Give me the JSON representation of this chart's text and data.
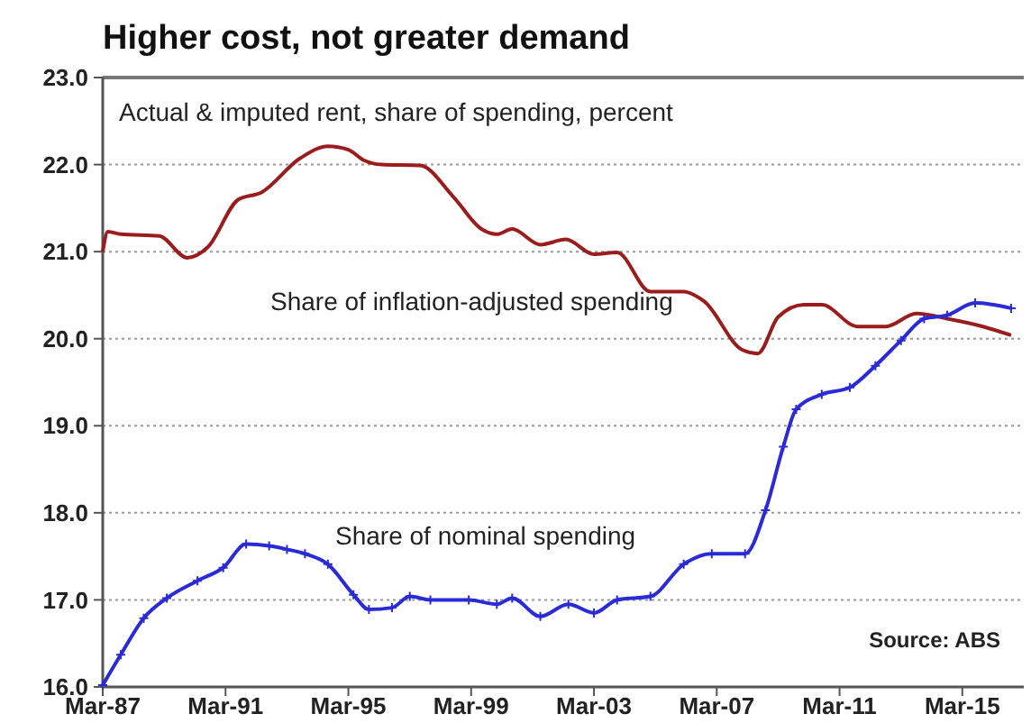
{
  "chart_data": {
    "type": "line",
    "title": "Higher cost, not greater demand",
    "subtitle": "Actual & imputed rent, share of spending, percent",
    "annotations": [
      "Source: ABS"
    ],
    "xlim": [
      "1987-03",
      "2017-03"
    ],
    "xticks": [
      {
        "value": "1987-03",
        "label": "Mar-87"
      },
      {
        "value": "1991-03",
        "label": "Mar-91"
      },
      {
        "value": "1995-03",
        "label": "Mar-95"
      },
      {
        "value": "1999-03",
        "label": "Mar-99"
      },
      {
        "value": "2003-03",
        "label": "Mar-03"
      },
      {
        "value": "2007-03",
        "label": "Mar-07"
      },
      {
        "value": "2011-03",
        "label": "Mar-11"
      },
      {
        "value": "2015-03",
        "label": "Mar-15"
      }
    ],
    "ylim": [
      16,
      23
    ],
    "yticks": [
      {
        "value": 16,
        "label": "16.0"
      },
      {
        "value": 17,
        "label": "17.0"
      },
      {
        "value": 18,
        "label": "18.0"
      },
      {
        "value": 19,
        "label": "19.0"
      },
      {
        "value": 20,
        "label": "20.0"
      },
      {
        "value": 21,
        "label": "21.0"
      },
      {
        "value": 22,
        "label": "22.0"
      },
      {
        "value": 23,
        "label": "23.0"
      }
    ],
    "grid": "y",
    "series": [
      {
        "name": "Share of inflation-adjusted spending",
        "color": "#9b1c1c",
        "marker": "none",
        "x": [
          "1987-03",
          "1987-05",
          "1987-10",
          "1989-01",
          "1989-12",
          "1990-08",
          "1991-08",
          "1992-05",
          "1993-08",
          "1994-07",
          "1995-03",
          "1995-09",
          "1996-04",
          "1997-07",
          "1998-08",
          "1999-07",
          "2000-01",
          "2000-07",
          "2001-06",
          "2002-04",
          "2003-03",
          "2003-12",
          "2005-01",
          "2006-02",
          "2006-10",
          "2008-01",
          "2008-07",
          "2009-03",
          "2010-01",
          "2010-08",
          "2011-10",
          "2012-09",
          "2013-09",
          "2014-09",
          "2015-11",
          "2016-10"
        ],
        "values": [
          21.0,
          21.23,
          21.2,
          21.18,
          20.93,
          21.05,
          21.6,
          21.68,
          22.07,
          22.21,
          22.17,
          22.05,
          22.0,
          21.99,
          21.63,
          21.26,
          21.2,
          21.26,
          21.08,
          21.14,
          20.97,
          20.99,
          20.54,
          20.54,
          20.43,
          19.87,
          19.83,
          20.25,
          20.39,
          20.39,
          20.14,
          20.14,
          20.29,
          20.23,
          20.14,
          20.04
        ]
      },
      {
        "name": "Share of nominal spending",
        "color": "#2a2ad6",
        "marker": "cross",
        "x": [
          "1987-03",
          "1987-10",
          "1988-07",
          "1989-04",
          "1990-04",
          "1991-02",
          "1991-11",
          "1992-08",
          "1993-03",
          "1993-10",
          "1994-07",
          "1995-05",
          "1995-11",
          "1996-08",
          "1997-03",
          "1997-11",
          "1999-02",
          "2000-01",
          "2000-07",
          "2001-06",
          "2002-05",
          "2003-03",
          "2003-12",
          "2005-01",
          "2006-02",
          "2007-01",
          "2008-02",
          "2008-10",
          "2009-05",
          "2009-10",
          "2010-08",
          "2011-07",
          "2012-05",
          "2013-03",
          "2013-12",
          "2014-09",
          "2015-08",
          "2016-10"
        ],
        "values": [
          16.02,
          16.37,
          16.79,
          17.02,
          17.22,
          17.37,
          17.64,
          17.62,
          17.58,
          17.53,
          17.41,
          17.06,
          16.89,
          16.91,
          17.04,
          17.0,
          17.0,
          16.95,
          17.02,
          16.81,
          16.95,
          16.85,
          17.0,
          17.04,
          17.41,
          17.53,
          17.53,
          18.03,
          18.76,
          19.19,
          19.36,
          19.44,
          19.69,
          19.98,
          20.23,
          20.27,
          20.41,
          20.35
        ]
      }
    ]
  }
}
